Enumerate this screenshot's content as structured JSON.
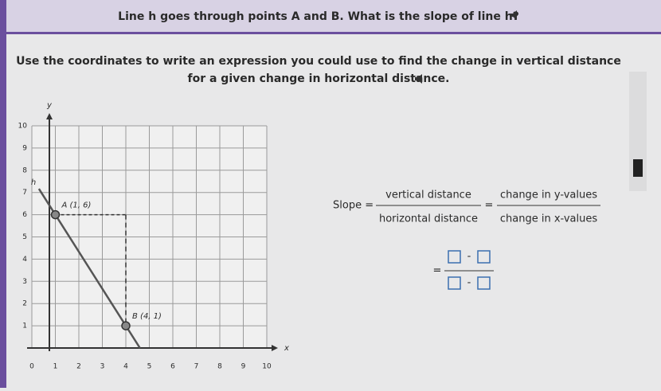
{
  "header": {
    "title": "Line h goes through points A and B. What is the slope of line h?"
  },
  "instruction": "Use the coordinates to write an expression you could use to find the change in vertical distance for a given change in horizontal distance.",
  "graph": {
    "x_label": "x",
    "y_label": "y",
    "line_label": "h",
    "xlim": [
      0,
      10
    ],
    "ylim": [
      0,
      10
    ],
    "xticks": [
      0,
      1,
      2,
      3,
      4,
      5,
      6,
      7,
      8,
      9,
      10
    ],
    "yticks": [
      1,
      2,
      3,
      4,
      5,
      6,
      7,
      8,
      9,
      10
    ],
    "points": [
      {
        "label": "A (1, 6)",
        "x": 1,
        "y": 6
      },
      {
        "label": "B (4, 1)",
        "x": 4,
        "y": 1
      }
    ]
  },
  "formula": {
    "slope": "Slope =",
    "equals": "=",
    "numerator_1": "vertical distance",
    "denominator_1": "horizontal distance",
    "numerator_2": "change in y-values",
    "denominator_2": "change in x-values",
    "operator": "-"
  }
}
